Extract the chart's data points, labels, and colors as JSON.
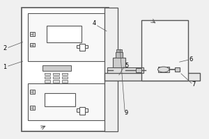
{
  "bg_color": "#f0f0f0",
  "line_color": "#555555",
  "lw": 1.0
}
